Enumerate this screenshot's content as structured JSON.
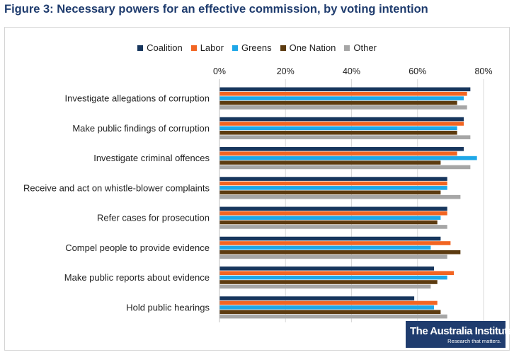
{
  "figure": {
    "title": "Figure 3: Necessary powers for an effective commission, by voting intention"
  },
  "logo": {
    "name": "The Australia Institute",
    "tagline": "Research that matters."
  },
  "chart_data": {
    "type": "bar",
    "orientation": "horizontal",
    "title": "Figure 3: Necessary powers for an effective commission, by voting intention",
    "xlabel": "",
    "ylabel": "",
    "xlim": [
      0,
      80
    ],
    "tick_values": [
      0,
      20,
      40,
      60,
      80
    ],
    "tick_labels": [
      "0%",
      "20%",
      "40%",
      "60%",
      "80%"
    ],
    "grid": true,
    "legend_position": "top",
    "categories": [
      "Investigate allegations of corruption",
      "Make public findings of corruption",
      "Investigate criminal offences",
      "Receive and act on whistle-blower complaints",
      "Refer cases for prosecution",
      "Compel people to provide evidence",
      "Make public reports about evidence",
      "Hold public hearings"
    ],
    "series": [
      {
        "name": "Coalition",
        "color": "#17365d",
        "values": [
          76,
          74,
          74,
          69,
          69,
          67,
          65,
          59
        ]
      },
      {
        "name": "Labor",
        "color": "#f26522",
        "values": [
          75,
          74,
          72,
          69,
          69,
          70,
          71,
          66
        ]
      },
      {
        "name": "Greens",
        "color": "#1ea7e8",
        "values": [
          74,
          72,
          78,
          69,
          67,
          64,
          69,
          65
        ]
      },
      {
        "name": "One Nation",
        "color": "#5c3b10",
        "values": [
          72,
          72,
          67,
          67,
          66,
          73,
          66,
          67
        ]
      },
      {
        "name": "Other",
        "color": "#a6a6a6",
        "values": [
          75,
          76,
          76,
          73,
          69,
          69,
          64,
          69
        ]
      }
    ]
  }
}
